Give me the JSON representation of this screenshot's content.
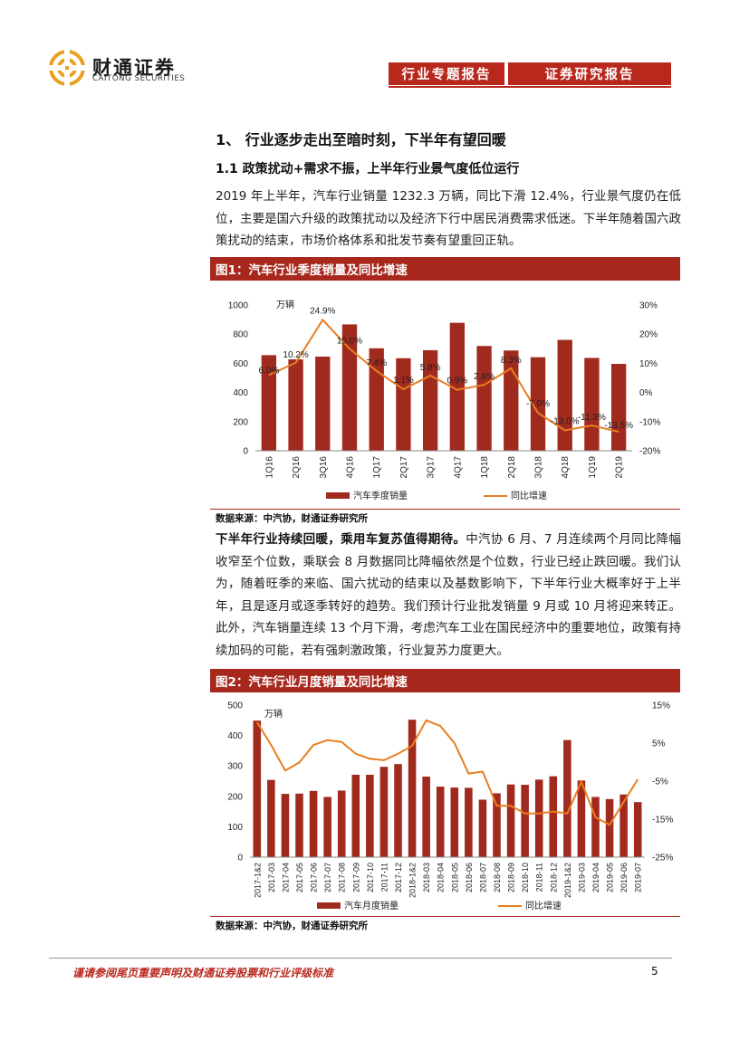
{
  "header": {
    "logo_cn": "财通证券",
    "logo_en": "CAITONG SECURITIES",
    "tab1": "行业专题报告",
    "tab2": "证券研究报告"
  },
  "section": {
    "h1": "1、 行业逐步走出至暗时刻，下半年有望回暖",
    "h2": "1.1 政策扰动+需求不振，上半年行业景气度低位运行",
    "para1": "2019 年上半年，汽车行业销量 1232.3 万辆，同比下滑 12.4%，行业景气度仍在低位，主要是国六升级的政策扰动以及经济下行中居民消费需求低迷。下半年随着国六政策扰动的结束，市场价格体系和批发节奏有望重回正轨。",
    "para2_bold": "下半年行业持续回暖，乘用车复苏值得期待。",
    "para2": "中汽协 6 月、7 月连续两个月同比降幅收窄至个位数，乘联会 8 月数据同比降幅依然是个位数，行业已经止跌回暖。我们认为，随着旺季的来临、国六扰动的结束以及基数影响下，下半年行业大概率好于上半年，且是逐月或逐季转好的趋势。我们预计行业批发销量 9 月或 10 月将迎来转正。此外，汽车销量连续 13 个月下滑，考虑汽车工业在国民经济中的重要地位，政策有持续加码的可能，若有强刺激政策，行业复苏力度更大。"
  },
  "fig1": {
    "title": "图1：汽车行业季度销量及同比增速",
    "source": "数据来源：中汽协，财通证券研究所"
  },
  "fig2": {
    "title": "图2：汽车行业月度销量及同比增速",
    "source": "数据来源：中汽协，财通证券研究所"
  },
  "footer": {
    "disclaimer": "谨请参阅尾页重要声明及财通证券股票和行业评级标准",
    "page": "5"
  },
  "colors": {
    "bar": "#a12a1e",
    "line": "#e87e22",
    "brand": "#b8281d"
  },
  "chart_data": [
    {
      "type": "bar",
      "title": "汽车行业季度销量及同比增速",
      "unit_label": "万辆",
      "categories": [
        "1Q16",
        "2Q16",
        "3Q16",
        "4Q16",
        "1Q17",
        "2Q17",
        "3Q17",
        "4Q17",
        "1Q18",
        "2Q18",
        "3Q18",
        "4Q18",
        "1Q19",
        "2Q19"
      ],
      "series": [
        {
          "name": "汽车季度销量",
          "type": "bar",
          "axis": "left",
          "values": [
            656,
            627,
            646,
            867,
            703,
            635,
            690,
            878,
            719,
            688,
            642,
            761,
            637,
            596
          ]
        },
        {
          "name": "同比增速",
          "type": "line",
          "axis": "right",
          "values": [
            6.0,
            10.2,
            24.9,
            15.0,
            7.4,
            1.1,
            5.8,
            0.9,
            2.6,
            8.3,
            -7.0,
            -13.0,
            -11.3,
            -13.5
          ],
          "labels": [
            "6.0%",
            "10.2%",
            "24.9%",
            "15.0%",
            "7.4%",
            "1.1%",
            "5.8%",
            "0.9%",
            "2.6%",
            "8.3%",
            "-7.0%",
            "-13.0%",
            "-11.3%",
            "-13.5%"
          ]
        }
      ],
      "ylim_left": [
        0,
        1000
      ],
      "yticks_left": [
        "0",
        "200",
        "400",
        "600",
        "800",
        "1000"
      ],
      "ylim_right": [
        -20,
        30
      ],
      "yticks_right": [
        "-20%",
        "-10%",
        "0%",
        "10%",
        "20%",
        "30%"
      ],
      "legend": [
        "汽车季度销量",
        "同比增速"
      ]
    },
    {
      "type": "bar",
      "title": "汽车行业月度销量及同比增速",
      "unit_label": "万辆",
      "categories": [
        "2017-1&2",
        "2017-03",
        "2017-04",
        "2017-05",
        "2017-06",
        "2017-07",
        "2017-08",
        "2017-09",
        "2017-10",
        "2017-11",
        "2017-12",
        "2018-1&2",
        "2018-03",
        "2018-04",
        "2018-05",
        "2018-06",
        "2018-07",
        "2018-08",
        "2018-09",
        "2018-10",
        "2018-11",
        "2018-12",
        "2019-1&2",
        "2019-03",
        "2019-04",
        "2019-05",
        "2019-06",
        "2019-07"
      ],
      "series": [
        {
          "name": "汽车月度销量",
          "type": "bar",
          "axis": "left",
          "values": [
            449,
            254,
            208,
            209,
            218,
            198,
            219,
            271,
            271,
            297,
            306,
            452,
            265,
            232,
            229,
            228,
            189,
            210,
            239,
            238,
            255,
            266,
            385,
            252,
            198,
            191,
            206,
            181
          ]
        },
        {
          "name": "同比增速",
          "type": "line",
          "axis": "right",
          "values": [
            10.5,
            4.5,
            -2.2,
            -0.1,
            4.5,
            5.8,
            5.3,
            2.2,
            0.9,
            0.5,
            2.2,
            4.3,
            11.0,
            9.5,
            5.0,
            -3.0,
            -2.5,
            -11.5,
            -11.5,
            -13.5,
            -13.5,
            -13.0,
            -13.5,
            -5.2,
            -14.5,
            -16.5,
            -10.5,
            -4.5
          ]
        }
      ],
      "ylim_left": [
        0,
        500
      ],
      "yticks_left": [
        "0",
        "100",
        "200",
        "300",
        "400",
        "500"
      ],
      "ylim_right": [
        -25,
        15
      ],
      "yticks_right": [
        "-25%",
        "-15%",
        "-5%",
        "5%",
        "15%"
      ],
      "legend": [
        "汽车月度销量",
        "同比增速"
      ]
    }
  ]
}
